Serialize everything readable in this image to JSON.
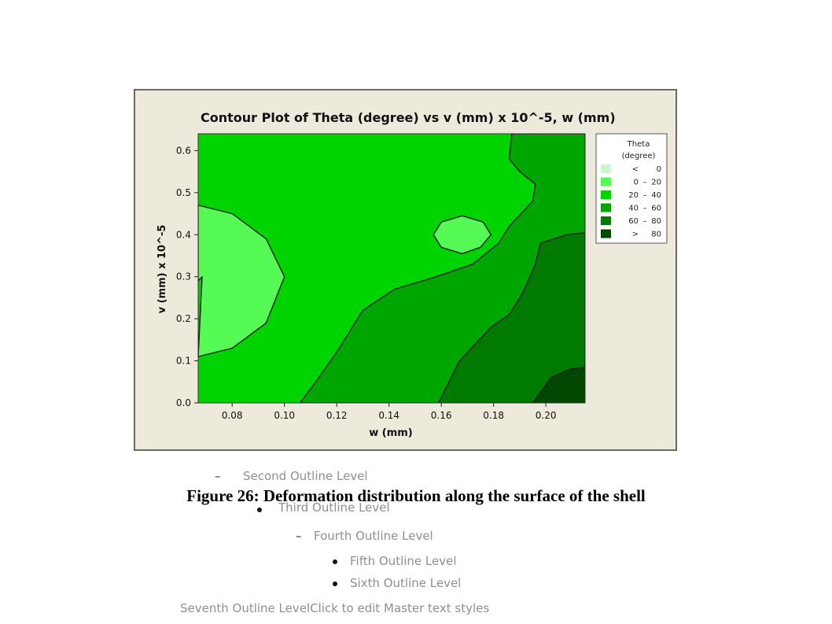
{
  "chart_data": {
    "type": "heatmap",
    "title": "Contour Plot of Theta (degree) vs v (mm) x 10^-5, w (mm)",
    "xlabel": "w (mm)",
    "ylabel": "v (mm) x 10^-5",
    "xlim": [
      0.067,
      0.215
    ],
    "ylim": [
      0.0,
      0.64
    ],
    "x_ticks": [
      "0.08",
      "0.10",
      "0.12",
      "0.14",
      "0.16",
      "0.18",
      "0.20"
    ],
    "x_tick_values": [
      0.08,
      0.1,
      0.12,
      0.14,
      0.16,
      0.18,
      0.2
    ],
    "y_ticks": [
      "0.0",
      "0.1",
      "0.2",
      "0.3",
      "0.4",
      "0.5",
      "0.6"
    ],
    "y_tick_values": [
      0.0,
      0.1,
      0.2,
      0.3,
      0.4,
      0.5,
      0.6
    ],
    "legend_title": [
      "Theta",
      "(degree)"
    ],
    "legend_position": "right",
    "legend": [
      {
        "label": "< 0",
        "low": "<",
        "high": "0",
        "color": "#ccf7cc"
      },
      {
        "label": "0 – 20",
        "low": "0",
        "high": "20",
        "color": "#55fa55"
      },
      {
        "label": "20 – 40",
        "low": "20",
        "high": "40",
        "color": "#00d400"
      },
      {
        "label": "40 – 60",
        "low": "40",
        "high": "60",
        "color": "#00a600"
      },
      {
        "label": "60 – 80",
        "low": "60",
        "high": "80",
        "color": "#007a00"
      },
      {
        "label": "> 80",
        "low": ">",
        "high": "80",
        "color": "#004800"
      }
    ],
    "regions": [
      {
        "level": "20 – 40",
        "color": "#00d400",
        "points": [
          [
            0.067,
            0.0
          ],
          [
            0.215,
            0.0
          ],
          [
            0.215,
            0.64
          ],
          [
            0.067,
            0.64
          ]
        ]
      },
      {
        "level": "0 – 20",
        "color": "#55fa55",
        "points": [
          [
            0.067,
            0.47
          ],
          [
            0.08,
            0.45
          ],
          [
            0.093,
            0.39
          ],
          [
            0.1,
            0.3
          ],
          [
            0.093,
            0.19
          ],
          [
            0.08,
            0.13
          ],
          [
            0.067,
            0.11
          ],
          [
            0.0685,
            0.3
          ],
          [
            0.067,
            0.29
          ]
        ]
      },
      {
        "level": "0 – 20",
        "color": "#55fa55",
        "points": [
          [
            0.157,
            0.4
          ],
          [
            0.16,
            0.43
          ],
          [
            0.168,
            0.445
          ],
          [
            0.176,
            0.43
          ],
          [
            0.179,
            0.4
          ],
          [
            0.175,
            0.37
          ],
          [
            0.168,
            0.355
          ],
          [
            0.16,
            0.37
          ]
        ]
      },
      {
        "level": "40 – 60",
        "color": "#00a600",
        "points": [
          [
            0.106,
            0.0
          ],
          [
            0.215,
            0.0
          ],
          [
            0.215,
            0.64
          ],
          [
            0.187,
            0.64
          ],
          [
            0.186,
            0.58
          ],
          [
            0.19,
            0.55
          ],
          [
            0.196,
            0.52
          ],
          [
            0.195,
            0.48
          ],
          [
            0.186,
            0.42
          ],
          [
            0.182,
            0.38
          ],
          [
            0.172,
            0.33
          ],
          [
            0.158,
            0.3
          ],
          [
            0.142,
            0.27
          ],
          [
            0.13,
            0.22
          ],
          [
            0.121,
            0.13
          ],
          [
            0.112,
            0.05
          ]
        ]
      },
      {
        "level": "60 – 80",
        "color": "#007a00",
        "points": [
          [
            0.159,
            0.0
          ],
          [
            0.215,
            0.0
          ],
          [
            0.215,
            0.405
          ],
          [
            0.208,
            0.4
          ],
          [
            0.198,
            0.38
          ],
          [
            0.196,
            0.33
          ],
          [
            0.191,
            0.26
          ],
          [
            0.186,
            0.21
          ],
          [
            0.179,
            0.18
          ],
          [
            0.167,
            0.1
          ]
        ]
      },
      {
        "level": "> 80",
        "color": "#004800",
        "points": [
          [
            0.195,
            0.0
          ],
          [
            0.215,
            0.0
          ],
          [
            0.215,
            0.085
          ],
          [
            0.209,
            0.08
          ],
          [
            0.202,
            0.06
          ]
        ]
      }
    ],
    "grid": false
  },
  "caption": "Figure 26: Deformation distribution along the surface of the shell",
  "outline": {
    "second": "Second Outline Level",
    "third": "Third Outline Level",
    "fourth": "Fourth Outline Level",
    "fifth": "Fifth Outline Level",
    "sixth": "Sixth Outline Level",
    "seventh": "Seventh Outline LevelClick to edit Master text styles"
  }
}
